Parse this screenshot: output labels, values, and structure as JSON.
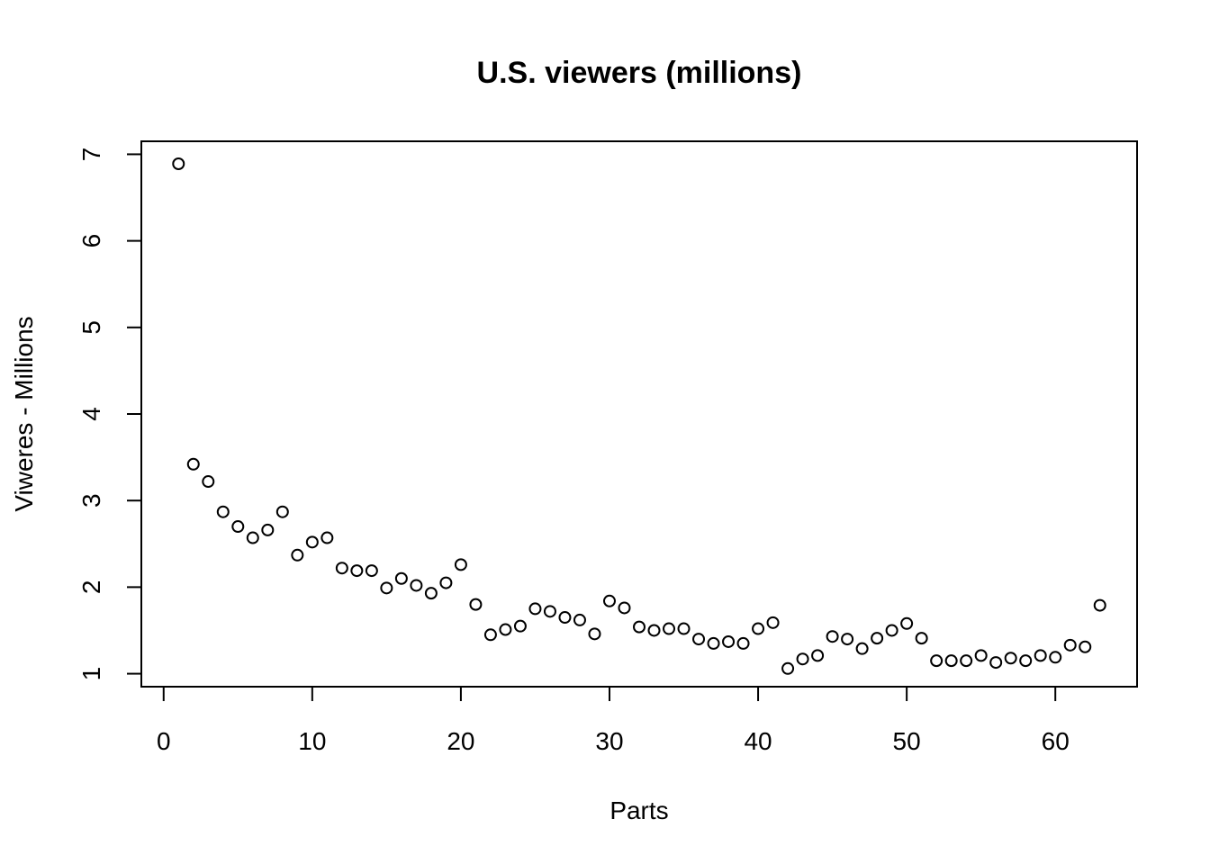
{
  "chart_data": {
    "type": "scatter",
    "title": "U.S. viewers (millions)",
    "xlabel": "Parts",
    "ylabel": "Viweres - Millions",
    "xlim": [
      -1.5,
      65.5
    ],
    "ylim": [
      0.85,
      7.15
    ],
    "x_ticks": [
      0,
      10,
      20,
      30,
      40,
      50,
      60
    ],
    "y_ticks": [
      1,
      2,
      3,
      4,
      5,
      6,
      7
    ],
    "grid": false,
    "legend": "none",
    "marker": "open-circle",
    "x": [
      1,
      2,
      3,
      4,
      5,
      6,
      7,
      8,
      9,
      10,
      11,
      12,
      13,
      14,
      15,
      16,
      17,
      18,
      19,
      20,
      21,
      22,
      23,
      24,
      25,
      26,
      27,
      28,
      29,
      30,
      31,
      32,
      33,
      34,
      35,
      36,
      37,
      38,
      39,
      40,
      41,
      42,
      43,
      44,
      45,
      46,
      47,
      48,
      49,
      50,
      51,
      52,
      53,
      54,
      55,
      56,
      57,
      58,
      59,
      60,
      61,
      62,
      63
    ],
    "y": [
      6.89,
      3.42,
      3.22,
      2.87,
      2.7,
      2.57,
      2.66,
      2.87,
      2.37,
      2.52,
      2.57,
      2.22,
      2.19,
      2.19,
      1.99,
      2.1,
      2.02,
      1.93,
      2.05,
      2.26,
      1.8,
      1.45,
      1.51,
      1.55,
      1.75,
      1.72,
      1.65,
      1.62,
      1.46,
      1.84,
      1.76,
      1.54,
      1.5,
      1.52,
      1.52,
      1.4,
      1.35,
      1.37,
      1.35,
      1.52,
      1.59,
      1.06,
      1.17,
      1.21,
      1.43,
      1.4,
      1.29,
      1.41,
      1.5,
      1.58,
      1.41,
      1.15,
      1.15,
      1.15,
      1.21,
      1.13,
      1.18,
      1.15,
      1.21,
      1.19,
      1.33,
      1.31,
      1.79
    ]
  }
}
